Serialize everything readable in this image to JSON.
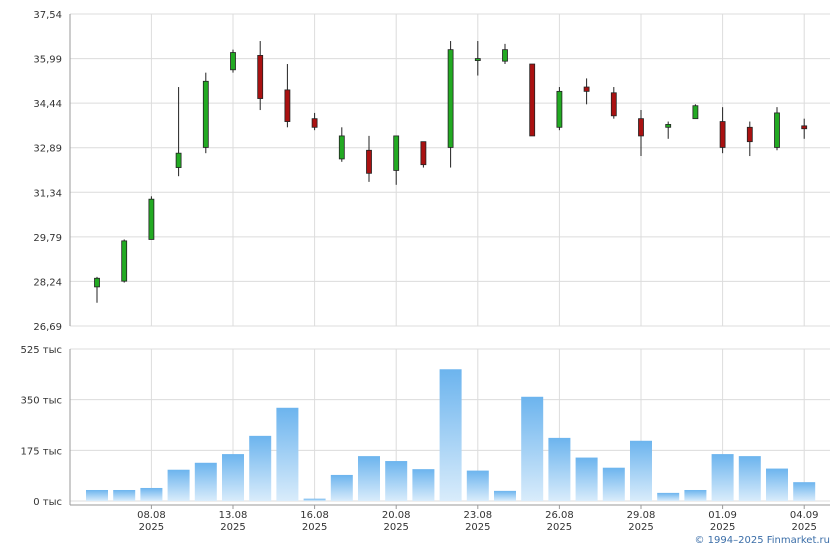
{
  "chart_data": [
    {
      "type": "candlestick",
      "ylim": [
        26.69,
        37.54
      ],
      "y_ticks": [
        "37,54",
        "35,99",
        "34,44",
        "32,89",
        "31,34",
        "29,79",
        "28,24",
        "26,69"
      ],
      "y_tick_values": [
        37.54,
        35.99,
        34.44,
        32.89,
        31.34,
        29.79,
        28.24,
        26.69
      ],
      "grid": true,
      "candles": [
        {
          "o": 28.05,
          "h": 28.4,
          "l": 27.5,
          "c": 28.35
        },
        {
          "o": 28.25,
          "h": 29.7,
          "l": 28.2,
          "c": 29.65
        },
        {
          "o": 29.7,
          "h": 31.2,
          "l": 29.7,
          "c": 31.1
        },
        {
          "o": 32.2,
          "h": 35.0,
          "l": 31.9,
          "c": 32.7
        },
        {
          "o": 32.9,
          "h": 35.5,
          "l": 32.7,
          "c": 35.2
        },
        {
          "o": 35.6,
          "h": 36.3,
          "l": 35.5,
          "c": 36.2
        },
        {
          "o": 36.1,
          "h": 36.6,
          "l": 34.2,
          "c": 34.6
        },
        {
          "o": 34.9,
          "h": 35.8,
          "l": 33.6,
          "c": 33.8
        },
        {
          "o": 33.9,
          "h": 34.1,
          "l": 33.5,
          "c": 33.6
        },
        {
          "o": 32.5,
          "h": 33.6,
          "l": 32.4,
          "c": 33.3
        },
        {
          "o": 32.8,
          "h": 33.3,
          "l": 31.7,
          "c": 32.0
        },
        {
          "o": 32.1,
          "h": 33.3,
          "l": 31.6,
          "c": 33.3
        },
        {
          "o": 33.1,
          "h": 33.1,
          "l": 32.2,
          "c": 32.3
        },
        {
          "o": 32.9,
          "h": 36.6,
          "l": 32.2,
          "c": 36.3
        },
        {
          "o": 35.97,
          "h": 36.6,
          "l": 35.4,
          "c": 35.99
        },
        {
          "o": 35.9,
          "h": 36.5,
          "l": 35.8,
          "c": 36.3
        },
        {
          "o": 35.8,
          "h": 35.8,
          "l": 33.3,
          "c": 33.3
        },
        {
          "o": 33.6,
          "h": 35.0,
          "l": 33.5,
          "c": 34.85
        },
        {
          "o": 35.0,
          "h": 35.3,
          "l": 34.4,
          "c": 34.85
        },
        {
          "o": 34.8,
          "h": 35.0,
          "l": 33.9,
          "c": 34.0
        },
        {
          "o": 33.9,
          "h": 34.2,
          "l": 32.6,
          "c": 33.3
        },
        {
          "o": 33.6,
          "h": 33.8,
          "l": 33.2,
          "c": 33.7
        },
        {
          "o": 33.9,
          "h": 34.4,
          "l": 33.9,
          "c": 34.35
        },
        {
          "o": 33.8,
          "h": 34.3,
          "l": 32.7,
          "c": 32.9
        },
        {
          "o": 33.6,
          "h": 33.8,
          "l": 32.6,
          "c": 33.1
        },
        {
          "o": 32.9,
          "h": 34.3,
          "l": 32.8,
          "c": 34.1
        },
        {
          "o": 33.65,
          "h": 33.9,
          "l": 33.2,
          "c": 33.55
        }
      ],
      "up_color": "#22aa22",
      "down_color": "#aa1111"
    },
    {
      "type": "bar",
      "ylim": [
        0,
        525
      ],
      "y_ticks": [
        "525 тыс",
        "350 тыс",
        "175 тыс",
        "0 тыс"
      ],
      "y_tick_values": [
        525,
        350,
        175,
        0
      ],
      "grid": true,
      "values": [
        38,
        38,
        45,
        108,
        132,
        162,
        225,
        322,
        8,
        90,
        155,
        138,
        110,
        455,
        105,
        35,
        360,
        218,
        150,
        115,
        208,
        28,
        38,
        162,
        155,
        112,
        65
      ],
      "bar_color_top": "#6cb4ee",
      "bar_color_bottom": "#d9ecfb"
    }
  ],
  "x_axis": {
    "ticks": [
      {
        "day": "08.08",
        "year": "2025",
        "index": 2
      },
      {
        "day": "13.08",
        "year": "2025",
        "index": 5
      },
      {
        "day": "16.08",
        "year": "2025",
        "index": 8
      },
      {
        "day": "20.08",
        "year": "2025",
        "index": 11
      },
      {
        "day": "23.08",
        "year": "2025",
        "index": 14
      },
      {
        "day": "26.08",
        "year": "2025",
        "index": 17
      },
      {
        "day": "29.08",
        "year": "2025",
        "index": 20
      },
      {
        "day": "01.09",
        "year": "2025",
        "index": 23
      },
      {
        "day": "04.09",
        "year": "2025",
        "index": 26
      }
    ]
  },
  "copyright": "© 1994–2025 Finmarket.ru"
}
